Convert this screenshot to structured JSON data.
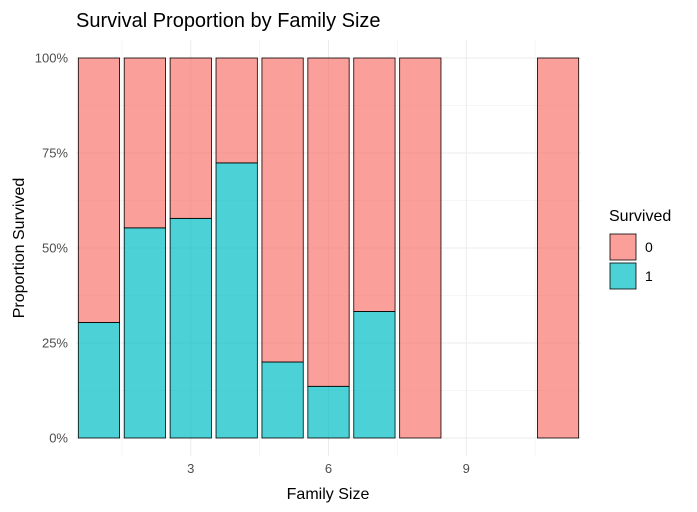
{
  "chart_data": {
    "type": "bar",
    "stacked": true,
    "position": "fill",
    "title": "Survival Proportion by Family Size",
    "xlabel": "Family Size",
    "ylabel": "Proportion Survived",
    "x": [
      1,
      2,
      3,
      4,
      5,
      6,
      7,
      8,
      11
    ],
    "xlim": [
      0.5,
      11.5
    ],
    "xticks": [
      3,
      6,
      9
    ],
    "ylim": [
      0,
      1
    ],
    "yticks": [
      0,
      0.25,
      0.5,
      0.75,
      1
    ],
    "ytick_labels": [
      "0%",
      "25%",
      "50%",
      "75%",
      "100%"
    ],
    "series": [
      {
        "name": "0",
        "color": "#F8766D",
        "values": [
          0.696,
          0.447,
          0.422,
          0.276,
          0.8,
          0.864,
          0.667,
          1.0,
          1.0
        ]
      },
      {
        "name": "1",
        "color": "#00BFC4",
        "values": [
          0.304,
          0.553,
          0.578,
          0.724,
          0.2,
          0.136,
          0.333,
          0.0,
          0.0
        ]
      }
    ],
    "legend": {
      "title": "Survived",
      "position": "right"
    },
    "grid": true
  }
}
